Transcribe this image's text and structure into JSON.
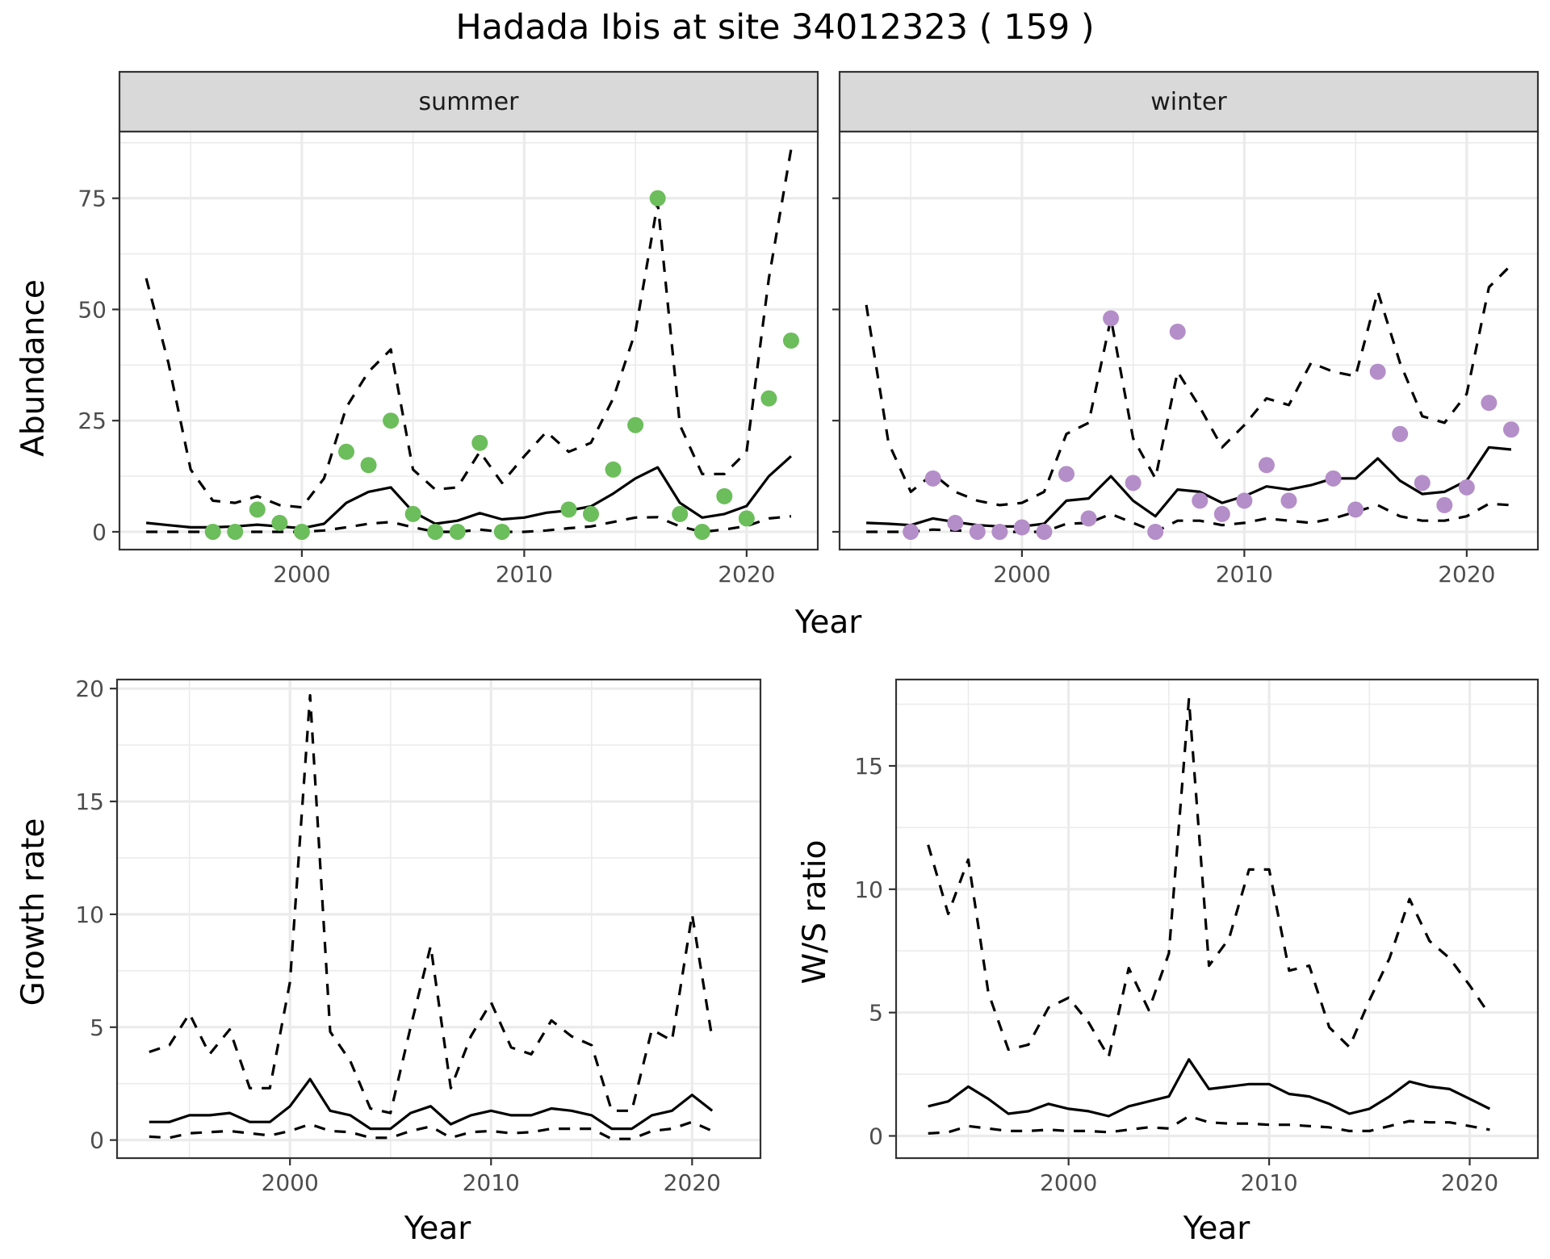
{
  "title": "Hadada Ibis at site 34012323 ( 159 )",
  "colors": {
    "summer_points": "#6cbd5b",
    "winter_points": "#b48ec8",
    "lines": "#000000",
    "strip_bg": "#d9d9d9",
    "grid": "#ebebeb",
    "border": "#333333"
  },
  "chart_data": [
    {
      "type": "line",
      "panel": "summer",
      "strip_label": "summer",
      "xlabel": "Year",
      "ylabel": "Abundance",
      "xlim": [
        1991.8,
        2023.2
      ],
      "ylim": [
        -4,
        90
      ],
      "xticks": [
        2000,
        2010,
        2020
      ],
      "xtick_labels": [
        "2000",
        "2010",
        "2020"
      ],
      "yticks": [
        0,
        25,
        50,
        75
      ],
      "ytick_labels": [
        "0",
        "25",
        "50",
        "75"
      ],
      "grid": true,
      "x": [
        1993,
        1994,
        1995,
        1996,
        1997,
        1998,
        1999,
        2000,
        2001,
        2002,
        2003,
        2004,
        2005,
        2006,
        2007,
        2008,
        2009,
        2010,
        2011,
        2012,
        2013,
        2014,
        2015,
        2016,
        2017,
        2018,
        2019,
        2020,
        2021,
        2022
      ],
      "series": [
        {
          "name": "estimate",
          "style": "solid",
          "values": [
            2,
            1.5,
            1,
            1,
            1.2,
            1.6,
            1.2,
            0.8,
            1.8,
            6.5,
            9,
            10,
            4.5,
            1.8,
            2.5,
            4.2,
            2.8,
            3.2,
            4.3,
            4.8,
            5.7,
            8.6,
            12,
            14.5,
            6.5,
            3.2,
            4,
            5.8,
            12.5,
            17
          ]
        },
        {
          "name": "upper",
          "style": "dashed",
          "values": [
            57,
            38,
            14,
            7,
            6.5,
            8,
            6,
            5.5,
            12,
            28,
            36,
            41,
            14,
            9.5,
            10,
            18,
            11,
            17,
            22.5,
            18,
            20,
            30,
            45,
            74,
            24,
            13,
            13,
            18,
            57,
            86
          ]
        },
        {
          "name": "lower",
          "style": "dashed",
          "values": [
            0,
            0,
            0,
            0,
            0,
            0,
            0,
            0,
            0.3,
            1,
            1.8,
            2.2,
            1,
            0,
            0,
            0.5,
            0,
            0,
            0.3,
            0.8,
            1.2,
            2.2,
            3.2,
            3.3,
            1.2,
            0,
            0.5,
            1.3,
            3,
            3.5
          ]
        }
      ],
      "points": {
        "name": "counts",
        "x": [
          1996,
          1997,
          1998,
          1999,
          2000,
          2002,
          2003,
          2004,
          2005,
          2006,
          2007,
          2008,
          2009,
          2012,
          2013,
          2014,
          2015,
          2016,
          2017,
          2018,
          2019,
          2020,
          2021,
          2022
        ],
        "y": [
          0,
          0,
          5,
          2,
          0,
          18,
          15,
          25,
          4,
          0,
          0,
          20,
          0,
          5,
          4,
          14,
          24,
          75,
          4,
          0,
          8,
          3,
          30,
          43
        ]
      }
    },
    {
      "type": "line",
      "panel": "winter",
      "strip_label": "winter",
      "xlabel": "Year",
      "ylabel": "Abundance",
      "xlim": [
        1991.8,
        2023.2
      ],
      "ylim": [
        -4,
        90
      ],
      "xticks": [
        2000,
        2010,
        2020
      ],
      "xtick_labels": [
        "2000",
        "2010",
        "2020"
      ],
      "yticks": [
        0,
        25,
        50,
        75
      ],
      "grid": true,
      "x": [
        1993,
        1994,
        1995,
        1996,
        1997,
        1998,
        1999,
        2000,
        2001,
        2002,
        2003,
        2004,
        2005,
        2006,
        2007,
        2008,
        2009,
        2010,
        2011,
        2012,
        2013,
        2014,
        2015,
        2016,
        2017,
        2018,
        2019,
        2020,
        2021,
        2022
      ],
      "series": [
        {
          "name": "estimate",
          "style": "solid",
          "values": [
            2,
            1.8,
            1.5,
            3,
            2.2,
            1.5,
            1.2,
            1.2,
            1.8,
            7,
            7.5,
            12.5,
            7,
            3.5,
            9.5,
            9,
            6.5,
            8,
            10.2,
            9.5,
            10.5,
            12,
            12,
            16.5,
            11.5,
            8.5,
            9,
            11.5,
            19,
            18.5
          ]
        },
        {
          "name": "upper",
          "style": "dashed",
          "values": [
            51,
            20,
            9,
            13,
            9,
            7,
            6,
            6.5,
            9,
            22,
            24.5,
            48,
            21,
            12,
            36,
            28,
            19,
            24,
            30,
            28.5,
            38,
            36,
            35,
            54,
            38,
            26,
            24.5,
            31,
            55,
            60
          ]
        },
        {
          "name": "lower",
          "style": "dashed",
          "values": [
            0,
            0,
            0,
            0.5,
            0.3,
            0.2,
            0,
            0,
            0,
            1.8,
            2,
            4,
            2,
            0,
            2.5,
            2.5,
            1.5,
            2,
            3,
            2.5,
            2,
            3,
            4.5,
            6,
            3.5,
            2.5,
            2.5,
            3.5,
            6.3,
            6
          ]
        }
      ],
      "points": {
        "name": "counts",
        "x": [
          1995,
          1996,
          1997,
          1998,
          1999,
          2000,
          2001,
          2002,
          2003,
          2004,
          2005,
          2006,
          2007,
          2008,
          2009,
          2010,
          2011,
          2012,
          2014,
          2015,
          2016,
          2017,
          2018,
          2019,
          2020,
          2021,
          2022
        ],
        "y": [
          0,
          12,
          2,
          0,
          0,
          1,
          0,
          13,
          3,
          48,
          11,
          0,
          45,
          7,
          4,
          7,
          15,
          7,
          12,
          5,
          36,
          22,
          11,
          6,
          10,
          29,
          23
        ]
      }
    },
    {
      "type": "line",
      "panel": "growth",
      "xlabel": "Year",
      "ylabel": "Growth rate",
      "xlim": [
        1991.4,
        2023.4
      ],
      "ylim": [
        -0.8,
        20.4
      ],
      "xticks": [
        2000,
        2010,
        2020
      ],
      "xtick_labels": [
        "2000",
        "2010",
        "2020"
      ],
      "yticks": [
        0,
        5,
        10,
        15,
        20
      ],
      "ytick_labels": [
        "0",
        "5",
        "10",
        "15",
        "20"
      ],
      "grid": true,
      "x": [
        1993,
        1994,
        1995,
        1996,
        1997,
        1998,
        1999,
        2000,
        2001,
        2002,
        2003,
        2004,
        2005,
        2006,
        2007,
        2008,
        2009,
        2010,
        2011,
        2012,
        2013,
        2014,
        2015,
        2016,
        2017,
        2018,
        2019,
        2020,
        2021
      ],
      "series": [
        {
          "name": "estimate",
          "style": "solid",
          "values": [
            0.8,
            0.8,
            1.1,
            1.1,
            1.2,
            0.8,
            0.8,
            1.5,
            2.7,
            1.3,
            1.1,
            0.5,
            0.5,
            1.2,
            1.5,
            0.7,
            1.1,
            1.3,
            1.1,
            1.1,
            1.4,
            1.3,
            1.1,
            0.5,
            0.5,
            1.1,
            1.3,
            2.0,
            1.3
          ]
        },
        {
          "name": "upper",
          "style": "dashed",
          "values": [
            3.9,
            4.2,
            5.6,
            3.8,
            4.9,
            2.3,
            2.3,
            7,
            19.7,
            4.8,
            3.5,
            1.4,
            1.2,
            5,
            8.6,
            2.3,
            4.6,
            6.1,
            4.1,
            3.8,
            5.3,
            4.6,
            4.2,
            1.3,
            1.3,
            4.9,
            4.4,
            10,
            4.5
          ]
        },
        {
          "name": "lower",
          "style": "dashed",
          "values": [
            0.15,
            0.1,
            0.3,
            0.35,
            0.4,
            0.3,
            0.2,
            0.4,
            0.7,
            0.4,
            0.35,
            0.1,
            0.1,
            0.4,
            0.6,
            0.1,
            0.35,
            0.4,
            0.3,
            0.35,
            0.5,
            0.5,
            0.5,
            0.05,
            0.05,
            0.4,
            0.5,
            0.8,
            0.4
          ]
        }
      ]
    },
    {
      "type": "line",
      "panel": "ratio",
      "xlabel": "Year",
      "ylabel": "W/S ratio",
      "xlim": [
        1991.4,
        2023.4
      ],
      "ylim": [
        -0.9,
        18.5
      ],
      "xticks": [
        2000,
        2010,
        2020
      ],
      "xtick_labels": [
        "2000",
        "2010",
        "2020"
      ],
      "yticks": [
        0,
        5,
        10,
        15
      ],
      "ytick_labels": [
        "0",
        "5",
        "10",
        "15"
      ],
      "grid": true,
      "x": [
        1993,
        1994,
        1995,
        1996,
        1997,
        1998,
        1999,
        2000,
        2001,
        2002,
        2003,
        2004,
        2005,
        2006,
        2007,
        2008,
        2009,
        2010,
        2011,
        2012,
        2013,
        2014,
        2015,
        2016,
        2017,
        2018,
        2019,
        2020,
        2021
      ],
      "series": [
        {
          "name": "estimate",
          "style": "solid",
          "values": [
            1.2,
            1.4,
            2.0,
            1.5,
            0.9,
            1.0,
            1.3,
            1.1,
            1.0,
            0.8,
            1.2,
            1.4,
            1.6,
            3.1,
            1.9,
            2.0,
            2.1,
            2.1,
            1.7,
            1.6,
            1.3,
            0.9,
            1.1,
            1.6,
            2.2,
            2.0,
            1.9,
            1.5,
            1.1
          ]
        },
        {
          "name": "upper",
          "style": "dashed",
          "values": [
            11.8,
            9.0,
            11.2,
            5.8,
            3.5,
            3.7,
            5.2,
            5.6,
            4.6,
            3.2,
            6.8,
            5.1,
            7.4,
            17.7,
            6.9,
            8.0,
            10.8,
            10.8,
            6.7,
            6.9,
            4.4,
            3.6,
            5.5,
            7.2,
            9.6,
            7.9,
            7.2,
            6.1,
            4.9
          ]
        },
        {
          "name": "lower",
          "style": "dashed",
          "values": [
            0.1,
            0.15,
            0.4,
            0.3,
            0.2,
            0.2,
            0.25,
            0.2,
            0.2,
            0.15,
            0.25,
            0.35,
            0.3,
            0.8,
            0.55,
            0.5,
            0.5,
            0.45,
            0.45,
            0.4,
            0.35,
            0.2,
            0.2,
            0.4,
            0.6,
            0.55,
            0.55,
            0.4,
            0.25
          ]
        }
      ]
    }
  ]
}
